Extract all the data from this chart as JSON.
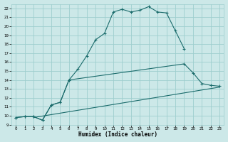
{
  "xlabel": "Humidex (Indice chaleur)",
  "background_color": "#cce8e8",
  "grid_color": "#9ecece",
  "line_color": "#1a6b6b",
  "xlim": [
    -0.5,
    23.5
  ],
  "ylim": [
    9,
    22.5
  ],
  "xticks": [
    0,
    1,
    2,
    3,
    4,
    5,
    6,
    7,
    8,
    9,
    10,
    11,
    12,
    13,
    14,
    15,
    16,
    17,
    18,
    19,
    20,
    21,
    22,
    23
  ],
  "yticks": [
    9,
    10,
    11,
    12,
    13,
    14,
    15,
    16,
    17,
    18,
    19,
    20,
    21,
    22
  ],
  "line1_x": [
    0,
    1,
    2,
    3,
    4,
    5,
    6,
    7,
    8,
    9,
    10,
    11,
    12,
    13,
    14,
    15,
    16,
    17,
    18,
    19
  ],
  "line1_y": [
    9.8,
    9.9,
    9.9,
    9.5,
    11.2,
    11.5,
    14.0,
    15.2,
    16.7,
    18.5,
    19.2,
    21.6,
    21.9,
    21.6,
    21.8,
    22.2,
    21.6,
    21.5,
    19.5,
    17.5
  ],
  "line2_x": [
    0,
    1,
    2,
    3,
    4,
    5,
    6,
    19,
    20,
    21,
    22,
    23
  ],
  "line2_y": [
    9.8,
    9.9,
    9.9,
    9.5,
    11.2,
    11.5,
    14.0,
    15.8,
    14.8,
    13.6,
    13.4,
    13.3
  ],
  "line3_x": [
    2,
    23
  ],
  "line3_y": [
    9.8,
    13.2
  ]
}
